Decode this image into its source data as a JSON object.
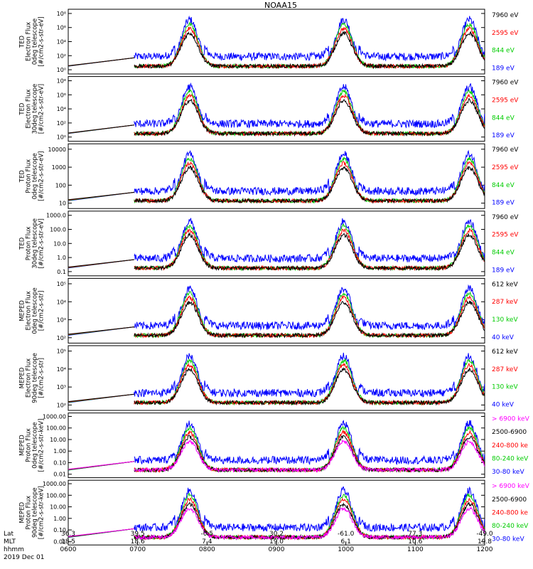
{
  "chart_data": {
    "type": "line",
    "title": "NOAA15",
    "x_axis": {
      "row_labels": [
        "Lat",
        "MLT",
        "hhmm"
      ],
      "date": "2019 Dec 01",
      "ticks": [
        {
          "time": "0600",
          "lat": "36.3",
          "mlt": "18.5"
        },
        {
          "time": "0700",
          "lat": "39.5",
          "mlt": "18.6"
        },
        {
          "time": "0800",
          "lat": "-0.5",
          "mlt": "7.4"
        },
        {
          "time": "0900",
          "lat": "30.2",
          "mlt": "19.0"
        },
        {
          "time": "1000",
          "lat": "-61.0",
          "mlt": "6.1"
        },
        {
          "time": "1100",
          "lat": "77.3",
          "mlt": "10.6"
        },
        {
          "time": "1200",
          "lat": "-49.0",
          "mlt": "19.8"
        }
      ],
      "range_hours": [
        6,
        12
      ]
    },
    "series_colors": [
      "#000000",
      "#ff0000",
      "#00cc00",
      "#0000ff",
      "#ff00ff"
    ],
    "panels": [
      {
        "ylabel": [
          "TED",
          "Electron Flux",
          "0deg telescope",
          "[#/cm2-s-str-eV]"
        ],
        "scale": "log",
        "yticks": [
          "10⁰",
          "10²",
          "10⁴",
          "10⁶",
          "10⁸"
        ],
        "ylog": [
          0,
          8
        ],
        "legend": [
          "7960 eV",
          "2595 eV",
          "844 eV",
          "189 eV"
        ],
        "base": 2.4
      },
      {
        "ylabel": [
          "TED",
          "Electron Flux",
          "30deg telescope",
          "[#/cm2-s-str-eV]"
        ],
        "scale": "log",
        "yticks": [
          "10⁰",
          "10²",
          "10⁴",
          "10⁶",
          "10⁸"
        ],
        "ylog": [
          0,
          8
        ],
        "legend": [
          "7960 eV",
          "2595 eV",
          "844 eV",
          "189 eV"
        ],
        "base": 2.3
      },
      {
        "ylabel": [
          "TED",
          "Proton Flux",
          "0deg telescope",
          "[#/cm2-s-str-eV]"
        ],
        "scale": "log",
        "yticks": [
          "10",
          "100",
          "1000",
          "10000"
        ],
        "ylog": [
          0.5,
          4.1
        ],
        "legend": [
          "7960 eV",
          "2595 eV",
          "844 eV",
          "189 eV"
        ],
        "base": 1.9
      },
      {
        "ylabel": [
          "TED",
          "Proton Flux",
          "30deg telescope",
          "[#/cm2-s-str-eV]"
        ],
        "scale": "log",
        "yticks": [
          "0.1",
          "1.0",
          "10.0",
          "100.0",
          "1000.0"
        ],
        "ylog": [
          -1,
          3.1
        ],
        "legend": [
          "7960 eV",
          "2595 eV",
          "844 eV",
          "189 eV"
        ],
        "base": 1.4
      },
      {
        "ylabel": [
          "MEPED",
          "Electron Flux",
          "0deg telescope",
          "[#/cm2-s-str]"
        ],
        "scale": "log",
        "yticks": [
          "10²",
          "10³",
          "10⁴",
          "10⁵"
        ],
        "ylog": [
          1.7,
          5.1
        ],
        "legend": [
          "612 keV",
          "287 keV",
          "130 keV",
          "40 keV"
        ],
        "base": 2.1
      },
      {
        "ylabel": [
          "MEPED",
          "Electron Flux",
          "90deg telescope",
          "[#/cm2-s-str]"
        ],
        "scale": "log",
        "yticks": [
          "10²",
          "10³",
          "10⁴",
          "10⁵"
        ],
        "ylog": [
          1.5,
          5.1
        ],
        "legend": [
          "612 keV",
          "287 keV",
          "130 keV",
          "40 keV"
        ],
        "base": 2.3
      },
      {
        "ylabel": [
          "MEPED",
          "Proton Flux",
          "0deg telescope",
          "[#/cm2-s-str-keV]"
        ],
        "scale": "log",
        "yticks": [
          "0.01",
          "0.10",
          "1.00",
          "10.00",
          "100.00",
          "1000.00"
        ],
        "ylog": [
          -2.3,
          3.1
        ],
        "legend": [
          "> 6900 keV",
          "2500-6900",
          "240-800 ke",
          "80-240 keV",
          "30-80 keV"
        ],
        "base": 0.3
      },
      {
        "ylabel": [
          "MEPED",
          "Proton Flux",
          "90deg telescope",
          "[#/cm2-s-str-keV]"
        ],
        "scale": "log",
        "yticks": [
          "0.01",
          "0.10",
          "1.00",
          "10.00",
          "100.00",
          "1000.00"
        ],
        "ylog": [
          -2.3,
          3.1
        ],
        "legend": [
          "> 6900 keV",
          "2500-6900",
          "240-800 ke",
          "80-240 keV",
          "30-80 keV"
        ],
        "base": 0.4
      }
    ],
    "pass_peaks_hours": [
      7.75,
      9.97,
      11.78
    ],
    "data_gap_hours": [
      6.0,
      6.95
    ]
  }
}
